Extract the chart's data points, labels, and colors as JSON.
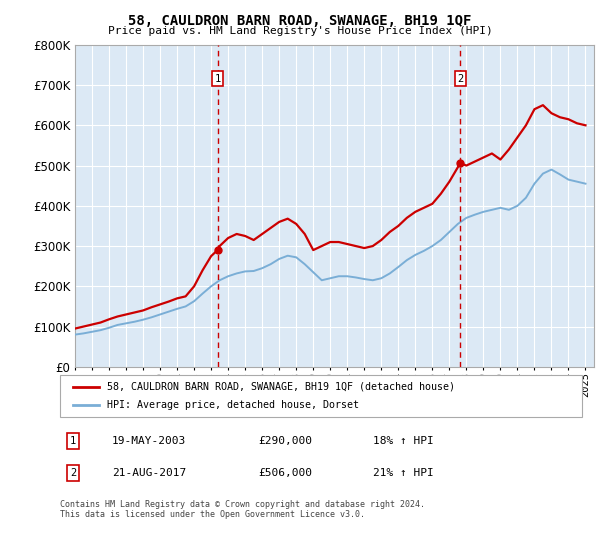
{
  "title": "58, CAULDRON BARN ROAD, SWANAGE, BH19 1QF",
  "subtitle": "Price paid vs. HM Land Registry's House Price Index (HPI)",
  "ytick_values": [
    0,
    100000,
    200000,
    300000,
    400000,
    500000,
    600000,
    700000,
    800000
  ],
  "ylim": [
    0,
    800000
  ],
  "xlim_start": 1995.0,
  "xlim_end": 2025.5,
  "background_color": "#dce9f5",
  "grid_color": "#ffffff",
  "red_line_color": "#cc0000",
  "blue_line_color": "#7aaed6",
  "vline_color": "#cc0000",
  "marker1_x": 2003.38,
  "marker1_y": 290000,
  "marker2_x": 2017.64,
  "marker2_y": 506000,
  "legend_red": "58, CAULDRON BARN ROAD, SWANAGE, BH19 1QF (detached house)",
  "legend_blue": "HPI: Average price, detached house, Dorset",
  "annotation1_date": "19-MAY-2003",
  "annotation1_price": "£290,000",
  "annotation1_hpi": "18% ↑ HPI",
  "annotation2_date": "21-AUG-2017",
  "annotation2_price": "£506,000",
  "annotation2_hpi": "21% ↑ HPI",
  "footnote": "Contains HM Land Registry data © Crown copyright and database right 2024.\nThis data is licensed under the Open Government Licence v3.0.",
  "red_x": [
    1995.0,
    1995.5,
    1996.0,
    1996.5,
    1997.0,
    1997.5,
    1998.0,
    1998.5,
    1999.0,
    1999.5,
    2000.0,
    2000.5,
    2001.0,
    2001.5,
    2002.0,
    2002.5,
    2003.0,
    2003.38,
    2003.5,
    2004.0,
    2004.5,
    2005.0,
    2005.5,
    2006.0,
    2006.5,
    2007.0,
    2007.5,
    2008.0,
    2008.5,
    2009.0,
    2009.5,
    2010.0,
    2010.5,
    2011.0,
    2011.5,
    2012.0,
    2012.5,
    2013.0,
    2013.5,
    2014.0,
    2014.5,
    2015.0,
    2015.5,
    2016.0,
    2016.5,
    2017.0,
    2017.64,
    2018.0,
    2018.5,
    2019.0,
    2019.5,
    2020.0,
    2020.5,
    2021.0,
    2021.5,
    2022.0,
    2022.5,
    2023.0,
    2023.5,
    2024.0,
    2024.5,
    2025.0
  ],
  "red_y": [
    95000,
    100000,
    105000,
    110000,
    118000,
    125000,
    130000,
    135000,
    140000,
    148000,
    155000,
    162000,
    170000,
    175000,
    200000,
    240000,
    275000,
    290000,
    300000,
    320000,
    330000,
    325000,
    315000,
    330000,
    345000,
    360000,
    368000,
    355000,
    330000,
    290000,
    300000,
    310000,
    310000,
    305000,
    300000,
    295000,
    300000,
    315000,
    335000,
    350000,
    370000,
    385000,
    395000,
    405000,
    430000,
    460000,
    506000,
    500000,
    510000,
    520000,
    530000,
    515000,
    540000,
    570000,
    600000,
    640000,
    650000,
    630000,
    620000,
    615000,
    605000,
    600000
  ],
  "blue_x": [
    1995.0,
    1995.5,
    1996.0,
    1996.5,
    1997.0,
    1997.5,
    1998.0,
    1998.5,
    1999.0,
    1999.5,
    2000.0,
    2000.5,
    2001.0,
    2001.5,
    2002.0,
    2002.5,
    2003.0,
    2003.5,
    2004.0,
    2004.5,
    2005.0,
    2005.5,
    2006.0,
    2006.5,
    2007.0,
    2007.5,
    2008.0,
    2008.5,
    2009.0,
    2009.5,
    2010.0,
    2010.5,
    2011.0,
    2011.5,
    2012.0,
    2012.5,
    2013.0,
    2013.5,
    2014.0,
    2014.5,
    2015.0,
    2015.5,
    2016.0,
    2016.5,
    2017.0,
    2017.5,
    2018.0,
    2018.5,
    2019.0,
    2019.5,
    2020.0,
    2020.5,
    2021.0,
    2021.5,
    2022.0,
    2022.5,
    2023.0,
    2023.5,
    2024.0,
    2024.5,
    2025.0
  ],
  "blue_y": [
    80000,
    83000,
    87000,
    91000,
    97000,
    104000,
    108000,
    112000,
    117000,
    123000,
    130000,
    137000,
    144000,
    150000,
    163000,
    182000,
    200000,
    215000,
    225000,
    232000,
    237000,
    238000,
    245000,
    255000,
    268000,
    276000,
    272000,
    255000,
    235000,
    215000,
    220000,
    225000,
    225000,
    222000,
    218000,
    215000,
    220000,
    232000,
    248000,
    265000,
    278000,
    288000,
    300000,
    315000,
    335000,
    355000,
    370000,
    378000,
    385000,
    390000,
    395000,
    390000,
    400000,
    420000,
    455000,
    480000,
    490000,
    478000,
    465000,
    460000,
    455000
  ],
  "xtick_years": [
    1995,
    1996,
    1997,
    1998,
    1999,
    2000,
    2001,
    2002,
    2003,
    2004,
    2005,
    2006,
    2007,
    2008,
    2009,
    2010,
    2011,
    2012,
    2013,
    2014,
    2015,
    2016,
    2017,
    2018,
    2019,
    2020,
    2021,
    2022,
    2023,
    2024,
    2025
  ]
}
